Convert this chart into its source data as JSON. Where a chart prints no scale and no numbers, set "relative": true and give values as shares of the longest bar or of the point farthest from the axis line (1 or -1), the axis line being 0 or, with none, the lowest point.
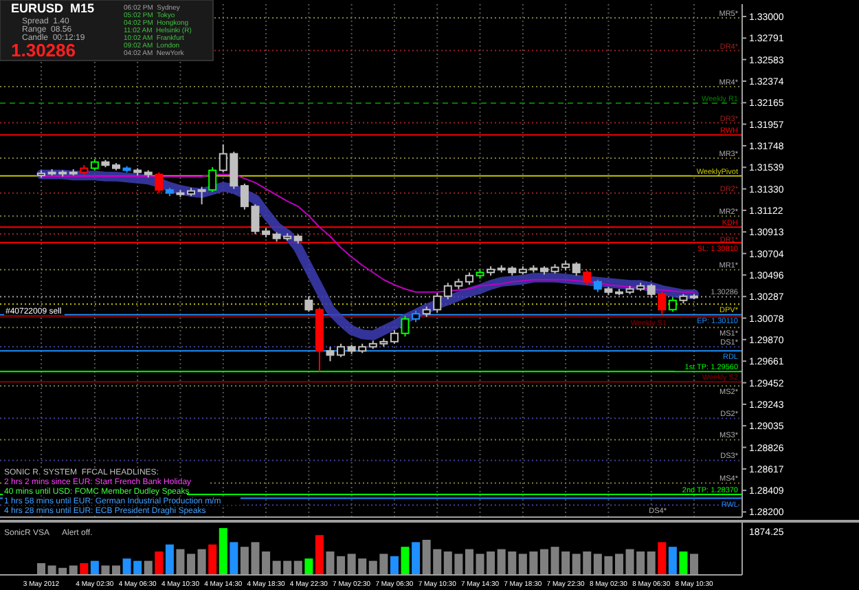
{
  "chart_data": [
    {
      "type": "candlestick",
      "grid": "x",
      "categories": [
        "3 May 2012",
        null,
        null,
        null,
        null,
        "4 May 02:30",
        null,
        null,
        null,
        "4 May 06:30",
        null,
        null,
        null,
        "4 May 10:30",
        null,
        null,
        null,
        "4 May 14:30",
        null,
        null,
        null,
        "4 May 18:30",
        null,
        null,
        null,
        "4 May 22:30",
        null,
        null,
        null,
        "7 May 02:30",
        null,
        null,
        null,
        "7 May 06:30",
        null,
        null,
        null,
        "7 May 10:30",
        null,
        null,
        null,
        "7 May 14:30",
        null,
        null,
        null,
        "7 May 18:30",
        null,
        null,
        null,
        "7 May 22:30",
        null,
        null,
        null,
        "8 May 02:30",
        null,
        null,
        null,
        "8 May 06:30",
        null,
        null,
        null,
        "8 May 10:30"
      ],
      "ohlc": [
        [
          1.3146,
          1.3151,
          1.3144,
          1.3148
        ],
        [
          1.3148,
          1.3152,
          1.3146,
          1.3149
        ],
        [
          1.3149,
          1.3151,
          1.3145,
          1.3148
        ],
        [
          1.3148,
          1.3152,
          1.3146,
          1.3149
        ],
        [
          1.3149,
          1.3156,
          1.3147,
          1.3153
        ],
        [
          1.3153,
          1.3162,
          1.3151,
          1.3159
        ],
        [
          1.3159,
          1.3161,
          1.3154,
          1.3156
        ],
        [
          1.3156,
          1.3158,
          1.3151,
          1.3153
        ],
        [
          1.3153,
          1.3155,
          1.3149,
          1.3151
        ],
        [
          1.3151,
          1.3153,
          1.3146,
          1.3149
        ],
        [
          1.3149,
          1.3151,
          1.3144,
          1.3147
        ],
        [
          1.3147,
          1.3149,
          1.3129,
          1.3132
        ],
        [
          1.3132,
          1.3134,
          1.3126,
          1.3129
        ],
        [
          1.3129,
          1.3132,
          1.3125,
          1.3128
        ],
        [
          1.3128,
          1.3134,
          1.3126,
          1.3131
        ],
        [
          1.3131,
          1.3135,
          1.3118,
          1.3132
        ],
        [
          1.3132,
          1.3154,
          1.313,
          1.3151
        ],
        [
          1.3151,
          1.3176,
          1.3149,
          1.3167
        ],
        [
          1.3167,
          1.3169,
          1.3133,
          1.3136
        ],
        [
          1.3136,
          1.3138,
          1.3113,
          1.3116
        ],
        [
          1.3116,
          1.3118,
          1.3089,
          1.3092
        ],
        [
          1.3092,
          1.3095,
          1.3086,
          1.3089
        ],
        [
          1.3089,
          1.3091,
          1.3082,
          1.3085
        ],
        [
          1.3085,
          1.309,
          1.3083,
          1.3087
        ],
        [
          1.3087,
          1.3089,
          1.308,
          1.3083
        ],
        [
          1.3025,
          1.3029,
          1.3014,
          1.3016
        ],
        [
          1.3016,
          1.3018,
          1.2956,
          1.2976
        ],
        [
          1.2976,
          1.298,
          1.2966,
          1.2972
        ],
        [
          1.2972,
          1.2983,
          1.297,
          1.298
        ],
        [
          1.298,
          1.2982,
          1.2973,
          1.2976
        ],
        [
          1.2976,
          1.2983,
          1.2974,
          1.298
        ],
        [
          1.298,
          1.2986,
          1.2978,
          1.2983
        ],
        [
          1.2983,
          1.2988,
          1.298,
          1.2985
        ],
        [
          1.2985,
          1.2996,
          1.2983,
          1.2993
        ],
        [
          1.2993,
          1.301,
          1.299,
          1.3007
        ],
        [
          1.3007,
          1.3015,
          1.3004,
          1.3012
        ],
        [
          1.3012,
          1.3019,
          1.3009,
          1.3016
        ],
        [
          1.3016,
          1.3032,
          1.3013,
          1.3029
        ],
        [
          1.3029,
          1.3042,
          1.3026,
          1.3039
        ],
        [
          1.3039,
          1.3046,
          1.3036,
          1.3043
        ],
        [
          1.3043,
          1.3052,
          1.304,
          1.3049
        ],
        [
          1.3049,
          1.3055,
          1.3046,
          1.3052
        ],
        [
          1.3052,
          1.3058,
          1.3049,
          1.3055
        ],
        [
          1.3055,
          1.3059,
          1.3052,
          1.3056
        ],
        [
          1.3056,
          1.3058,
          1.3049,
          1.3052
        ],
        [
          1.3052,
          1.3058,
          1.305,
          1.3055
        ],
        [
          1.3055,
          1.3059,
          1.3052,
          1.3056
        ],
        [
          1.3056,
          1.3058,
          1.305,
          1.3053
        ],
        [
          1.3053,
          1.306,
          1.3051,
          1.3057
        ],
        [
          1.3057,
          1.3063,
          1.3054,
          1.306
        ],
        [
          1.306,
          1.3062,
          1.3049,
          1.3052
        ],
        [
          1.3052,
          1.3054,
          1.304,
          1.3043
        ],
        [
          1.3043,
          1.3045,
          1.3033,
          1.3036
        ],
        [
          1.3036,
          1.3038,
          1.303,
          1.3033
        ],
        [
          1.3033,
          1.3036,
          1.303,
          1.3033
        ],
        [
          1.3033,
          1.3039,
          1.3031,
          1.3036
        ],
        [
          1.3036,
          1.3042,
          1.3034,
          1.3039
        ],
        [
          1.3039,
          1.3041,
          1.3028,
          1.3031
        ],
        [
          1.3031,
          1.3033,
          1.3011,
          1.3016
        ],
        [
          1.3016,
          1.3028,
          1.3014,
          1.3025
        ],
        [
          1.3025,
          1.3031,
          1.3022,
          1.3029
        ],
        [
          1.3029,
          1.3031,
          1.3026,
          1.3028
        ]
      ],
      "colors": [
        "#c0c0c0",
        "#c0c0c0",
        "#c0c0c0",
        "#c0c0c0",
        "#ff0000",
        "#00ff00",
        "#c0c0c0",
        "#c0c0c0",
        "#1e90ff",
        "#c0c0c0",
        "#c0c0c0",
        "#ff0000",
        "#1e90ff",
        "#c0c0c0",
        "#c0c0c0",
        "#c0c0c0",
        "#00ff00",
        "#c0c0c0",
        "#c0c0c0",
        "#c0c0c0",
        "#c0c0c0",
        "#c0c0c0",
        "#c0c0c0",
        "#c0c0c0",
        "#c0c0c0",
        "#c0c0c0",
        "#ff0000",
        "#c0c0c0",
        "#c0c0c0",
        "#c0c0c0",
        "#c0c0c0",
        "#c0c0c0",
        "#c0c0c0",
        "#c0c0c0",
        "#00ff00",
        "#1e90ff",
        "#c0c0c0",
        "#c0c0c0",
        "#c0c0c0",
        "#c0c0c0",
        "#c0c0c0",
        "#00ff00",
        "#c0c0c0",
        "#c0c0c0",
        "#c0c0c0",
        "#c0c0c0",
        "#c0c0c0",
        "#c0c0c0",
        "#c0c0c0",
        "#c0c0c0",
        "#c0c0c0",
        "#ff0000",
        "#1e90ff",
        "#c0c0c0",
        "#c0c0c0",
        "#c0c0c0",
        "#c0c0c0",
        "#c0c0c0",
        "#ff0000",
        "#00ff00",
        "#c0c0c0",
        "#c0c0c0"
      ],
      "series": [
        {
          "type": "line",
          "color": "#3c3cb4",
          "values": [
            1.3147,
            1.3147,
            1.3147,
            1.3146,
            1.3146,
            1.3146,
            1.3145,
            1.3145,
            1.3144,
            1.3143,
            1.3142,
            1.3139,
            1.3135,
            1.3132,
            1.313,
            1.3129,
            1.3132,
            1.3135,
            1.3133,
            1.3128,
            1.3123,
            1.3109,
            1.3096,
            1.3089,
            1.3076,
            1.3056,
            1.3036,
            1.3016,
            1.3005,
            1.2996,
            1.2992,
            1.2991,
            1.2996,
            1.3001,
            1.3007,
            1.3012,
            1.3017,
            1.3021,
            1.3025,
            1.3029,
            1.3033,
            1.3036,
            1.304,
            1.3043,
            1.3044,
            1.3045,
            1.3047,
            1.3047,
            1.3047,
            1.3046,
            1.3045,
            1.3044,
            1.3043,
            1.3042,
            1.3041,
            1.304,
            1.304,
            1.3038,
            1.3035,
            1.3033,
            1.3031,
            1.3031
          ]
        },
        {
          "type": "line",
          "color": "#c000c0",
          "values": [
            1.3145,
            1.3145,
            1.3145,
            1.3145,
            1.3145,
            1.3145,
            1.3145,
            1.3145,
            1.3145,
            1.3145,
            1.3145,
            1.3145,
            1.3145,
            1.3145,
            1.3145,
            1.3145,
            1.3147,
            1.3147,
            1.3147,
            1.3143,
            1.3139,
            1.3133,
            1.3127,
            1.3121,
            1.3116,
            1.3107,
            1.3096,
            1.3087,
            1.3076,
            1.3067,
            1.3059,
            1.3052,
            1.3045,
            1.304,
            1.3036,
            1.3033,
            1.3033,
            1.3033,
            1.3034,
            1.3035,
            1.3036,
            1.3039,
            1.304,
            1.3041,
            1.3043,
            1.3044,
            1.3045,
            1.3045,
            1.3045,
            1.3045,
            1.3044,
            1.3043,
            1.3042,
            1.304,
            1.3039,
            1.3038,
            1.3037,
            1.3036,
            1.3035,
            1.3034,
            1.3033,
            1.3033
          ]
        }
      ],
      "ylim": [
        1.2815,
        1.3312
      ],
      "yticks": [
        {
          "value": 1.33,
          "label": "1.33000"
        },
        {
          "value": 1.32791,
          "label": "1.32791"
        },
        {
          "value": 1.32583,
          "label": "1.32583"
        },
        {
          "value": 1.32374,
          "label": "1.32374"
        },
        {
          "value": 1.32165,
          "label": "1.32165"
        },
        {
          "value": 1.31957,
          "label": "1.31957"
        },
        {
          "value": 1.31748,
          "label": "1.31748"
        },
        {
          "value": 1.31539,
          "label": "1.31539"
        },
        {
          "value": 1.3133,
          "label": "1.31330"
        },
        {
          "value": 1.31122,
          "label": "1.31122"
        },
        {
          "value": 1.30913,
          "label": "1.30913"
        },
        {
          "value": 1.30704,
          "label": "1.30704"
        },
        {
          "value": 1.30496,
          "label": "1.30496"
        },
        {
          "value": 1.30287,
          "label": "1.30287"
        },
        {
          "value": 1.30078,
          "label": "1.30078"
        },
        {
          "value": 1.2987,
          "label": "1.29870"
        },
        {
          "value": 1.29661,
          "label": "1.29661"
        },
        {
          "value": 1.29452,
          "label": "1.29452"
        },
        {
          "value": 1.29243,
          "label": "1.29243"
        },
        {
          "value": 1.29035,
          "label": "1.29035"
        },
        {
          "value": 1.28826,
          "label": "1.28826"
        },
        {
          "value": 1.28617,
          "label": "1.28617"
        },
        {
          "value": 1.28409,
          "label": "1.28409"
        },
        {
          "value": 1.282,
          "label": "1.28200"
        }
      ],
      "ref_lines": [
        {
          "axis": "y",
          "value": 1.32987,
          "label": "MR5*",
          "color": "#808040",
          "line_style": "dotted"
        },
        {
          "axis": "y",
          "value": 1.3267,
          "label": "DR4*",
          "color": "#a02020",
          "line_style": "dotted"
        },
        {
          "axis": "y",
          "value": 1.3232,
          "label": "MR4*",
          "color": "#808040",
          "line_style": "dotted"
        },
        {
          "axis": "y",
          "value": 1.3216,
          "label": "Weekly R1",
          "color": "#008000",
          "line_style": "dashed"
        },
        {
          "axis": "y",
          "value": 1.3197,
          "label": "DR3*",
          "color": "#a02020",
          "line_style": "dotted"
        },
        {
          "axis": "y",
          "value": 1.31853,
          "label": "RWH",
          "color": "#ff0000",
          "line_style": "solid"
        },
        {
          "axis": "y",
          "value": 1.31627,
          "label": "MR3*",
          "color": "#808040",
          "line_style": "dotted"
        },
        {
          "axis": "y",
          "value": 1.31456,
          "label": "WeeklyPivot",
          "color": "#c8c800",
          "line_style": "solid"
        },
        {
          "axis": "y",
          "value": 1.3129,
          "label": "DR2*",
          "color": "#a02020",
          "line_style": "dotted"
        },
        {
          "axis": "y",
          "value": 1.31067,
          "label": "MR2*",
          "color": "#808040",
          "line_style": "dotted"
        },
        {
          "axis": "y",
          "value": 1.3096,
          "label": "KDH",
          "color": "#ff0000",
          "line_style": "solid"
        },
        {
          "axis": "y",
          "value": 1.30893,
          "label": "DR1*",
          "color": "#a02020",
          "line_style": "dotted"
        },
        {
          "axis": "y",
          "value": 1.3081,
          "label": "SL: 1.30810",
          "color": "#ff0000",
          "line_style": "solid"
        },
        {
          "axis": "y",
          "value": 1.30547,
          "label": "MR1*",
          "color": "#808040",
          "line_style": "dotted"
        },
        {
          "axis": "y",
          "value": 1.30286,
          "label": "1.30286",
          "color": "#a0a0a0",
          "line_style": "dotted"
        },
        {
          "axis": "y",
          "value": 1.30213,
          "label": "DPV*",
          "color": "#c8c800",
          "line_style": "dotted"
        },
        {
          "axis": "y",
          "value": 1.3011,
          "label": "EP: 1.30110",
          "color": "#1e90ff",
          "line_style": "solid"
        },
        {
          "axis": "y",
          "value": 1.3009,
          "label": "Weekly S1",
          "color": "#8b0000",
          "line_style": "solid"
        },
        {
          "axis": "y",
          "value": 1.29987,
          "label": "MS1*",
          "color": "#808040",
          "line_style": "dotted"
        },
        {
          "axis": "y",
          "value": 1.298,
          "label": "DS1*",
          "color": "#4040a0",
          "line_style": "dotted"
        },
        {
          "axis": "y",
          "value": 1.2976,
          "label": "RDL",
          "color": "#1e90ff",
          "line_style": "solid"
        },
        {
          "axis": "y",
          "value": 1.2956,
          "label": "1st TP: 1.29560",
          "color": "#00ff00",
          "line_style": "solid"
        },
        {
          "axis": "y",
          "value": 1.2946,
          "label": "Weekly S2",
          "color": "#8b0000",
          "line_style": "solid"
        },
        {
          "axis": "y",
          "value": 1.2942,
          "label": "MS2*",
          "color": "#808040",
          "line_style": "dotted"
        },
        {
          "axis": "y",
          "value": 1.29107,
          "label": "DS2*",
          "color": "#4040a0",
          "line_style": "dotted"
        },
        {
          "axis": "y",
          "value": 1.289,
          "label": "MS3*",
          "color": "#808040",
          "line_style": "dotted"
        },
        {
          "axis": "y",
          "value": 1.287,
          "label": "DS3*",
          "color": "#4040a0",
          "line_style": "dotted"
        },
        {
          "axis": "y",
          "value": 1.2848,
          "label": "MS4*",
          "color": "#808040",
          "line_style": "dotted"
        },
        {
          "axis": "y",
          "value": 1.2837,
          "label": "2nd TP: 1.28370",
          "color": "#00ff00",
          "line_style": "solid"
        },
        {
          "axis": "y",
          "value": 1.28333,
          "label": "RWL",
          "color": "#1e90ff",
          "line_style": "solid"
        },
        {
          "axis": "y",
          "value": 1.28267,
          "label": "DS4*",
          "color": "#4040a0",
          "line_style": "dotted"
        }
      ],
      "annotations": [
        "EURUSD  M15",
        "Spread  1.40",
        "Range  08.56",
        "Candle  00:12:19",
        "1.30286",
        "06:02 PM  Sydney",
        "05:02 PM  Tokyo",
        "04:02 PM  Hongkong",
        "11:02 AM  Helsinki (R)",
        "10:02 AM  Frankfurt",
        "09:02 AM  London",
        "04:02 AM  NewYork",
        "#40722009 sell",
        "SONIC R. SYSTEM  FFCAL HEADLINES:",
        "2 hrs 2 mins since EUR: Start French Bank Holiday",
        "40 mins until USD: FOMC Member Dudley Speaks",
        "1 hrs 58 mins until EUR: German Industrial Production m/m",
        "4 hrs 28 mins until EUR: ECB President Draghi Speaks"
      ]
    },
    {
      "type": "bar",
      "relative": true,
      "title": "SonicR VSA",
      "annotations": [
        "Alert off.",
        "1874.25"
      ],
      "categories": [
        null,
        null,
        null,
        null,
        null,
        null,
        null,
        null,
        null,
        null,
        null,
        null,
        null,
        null,
        null,
        null,
        null,
        null,
        null,
        null,
        null,
        null,
        null,
        null,
        null,
        null,
        null,
        null,
        null,
        null,
        null,
        null,
        null,
        null,
        null,
        null,
        null,
        null,
        null,
        null,
        null,
        null,
        null,
        null,
        null,
        null,
        null,
        null,
        null,
        null,
        null,
        null,
        null,
        null,
        null,
        null,
        null,
        null,
        null,
        null,
        null,
        null
      ],
      "values": [
        0.25,
        0.2,
        0.15,
        0.2,
        0.25,
        0.3,
        0.2,
        0.2,
        0.35,
        0.3,
        0.3,
        0.5,
        0.65,
        0.55,
        0.45,
        0.55,
        0.65,
        1.0,
        0.7,
        0.6,
        0.7,
        0.5,
        0.3,
        0.3,
        0.3,
        0.35,
        0.85,
        0.5,
        0.4,
        0.45,
        0.35,
        0.3,
        0.45,
        0.4,
        0.6,
        0.7,
        0.75,
        0.55,
        0.5,
        0.45,
        0.55,
        0.45,
        0.5,
        0.55,
        0.5,
        0.45,
        0.5,
        0.55,
        0.6,
        0.5,
        0.45,
        0.5,
        0.45,
        0.4,
        0.45,
        0.55,
        0.5,
        0.5,
        0.7,
        0.6,
        0.5,
        0.45
      ],
      "colors": [
        "#808080",
        "#808080",
        "#808080",
        "#808080",
        "#ff0000",
        "#1e90ff",
        "#808080",
        "#808080",
        "#1e90ff",
        "#1e90ff",
        "#808080",
        "#ff0000",
        "#1e90ff",
        "#808080",
        "#808080",
        "#808080",
        "#ff0000",
        "#00ff00",
        "#1e90ff",
        "#808080",
        "#808080",
        "#808080",
        "#808080",
        "#808080",
        "#808080",
        "#00ff00",
        "#ff0000",
        "#808080",
        "#808080",
        "#808080",
        "#808080",
        "#808080",
        "#808080",
        "#1e90ff",
        "#00ff00",
        "#1e90ff",
        "#808080",
        "#808080",
        "#808080",
        "#808080",
        "#808080",
        "#808080",
        "#808080",
        "#808080",
        "#808080",
        "#808080",
        "#808080",
        "#808080",
        "#808080",
        "#808080",
        "#808080",
        "#808080",
        "#808080",
        "#808080",
        "#808080",
        "#808080",
        "#808080",
        "#808080",
        "#ff0000",
        "#1e90ff",
        "#00ff00",
        "#808080"
      ]
    }
  ]
}
